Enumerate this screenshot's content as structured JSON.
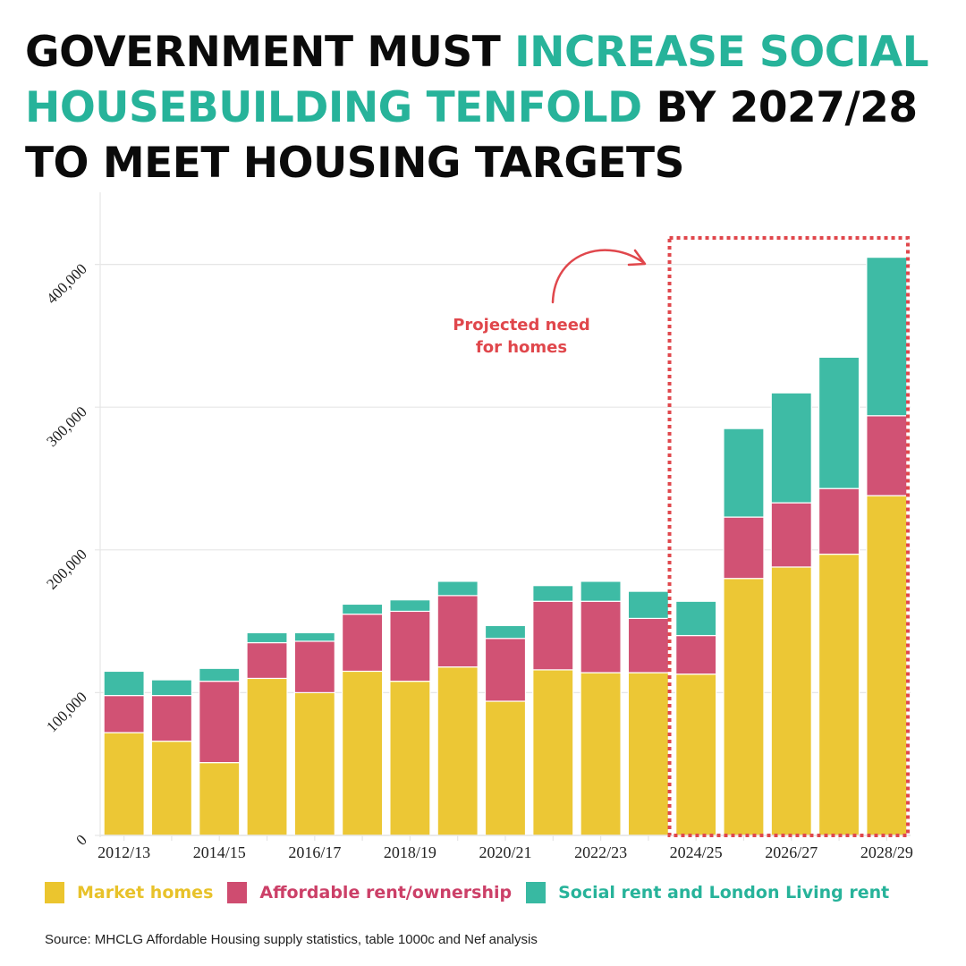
{
  "title": {
    "part1": "Government must ",
    "part2_highlight": "increase social housebuilding tenfold",
    "part3": " by 2027/28 to meet housing targets"
  },
  "colors": {
    "market": "#ebc52e",
    "affordable": "#cf4c70",
    "social": "#38b9a2",
    "highlight_text": "#27b39a",
    "annotation": "#e0474c",
    "grid": "#e6e6e6"
  },
  "chart_data": {
    "type": "bar",
    "stacked": true,
    "title": "",
    "xlabel": "",
    "ylabel": "",
    "ylim": [
      0,
      450000
    ],
    "yticks": [
      0,
      100000,
      200000,
      300000,
      400000
    ],
    "ytick_labels": [
      "0",
      "100,000",
      "200,000",
      "300,000",
      "400,000"
    ],
    "grid": true,
    "categories": [
      "2012/13",
      "2013/14",
      "2014/15",
      "2015/16",
      "2016/17",
      "2017/18",
      "2018/19",
      "2019/20",
      "2020/21",
      "2021/22",
      "2022/23",
      "2023/24",
      "2024/25",
      "2025/26",
      "2026/27",
      "2027/28",
      "2028/29"
    ],
    "xtick_labels_shown": [
      "2012/13",
      "2014/15",
      "2016/17",
      "2018/19",
      "2020/21",
      "2022/23",
      "2024/25",
      "2026/27",
      "2028/29"
    ],
    "series": [
      {
        "name": "Market homes",
        "key": "market",
        "values": [
          72000,
          66000,
          51000,
          110000,
          100000,
          115000,
          108000,
          118000,
          94000,
          116000,
          114000,
          114000,
          113000,
          180000,
          188000,
          197000,
          238000
        ]
      },
      {
        "name": "Affordable rent/ownership",
        "key": "affordable",
        "values": [
          26000,
          32000,
          57000,
          25000,
          36000,
          40000,
          49000,
          50000,
          44000,
          48000,
          50000,
          38000,
          27000,
          43000,
          45000,
          46000,
          56000
        ]
      },
      {
        "name": "Social rent and London Living rent",
        "key": "social",
        "values": [
          17000,
          11000,
          9000,
          7000,
          6000,
          7000,
          8000,
          10000,
          9000,
          11000,
          14000,
          19000,
          24000,
          62000,
          77000,
          92000,
          111000
        ]
      }
    ],
    "legend_position": "bottom",
    "annotation": {
      "text_line1": "Projected need",
      "text_line2": "for homes",
      "highlight_range": [
        "2024/25",
        "2028/29"
      ]
    }
  },
  "source": "Source: MHCLG Affordable Housing supply statistics, table 1000c and Nef analysis"
}
